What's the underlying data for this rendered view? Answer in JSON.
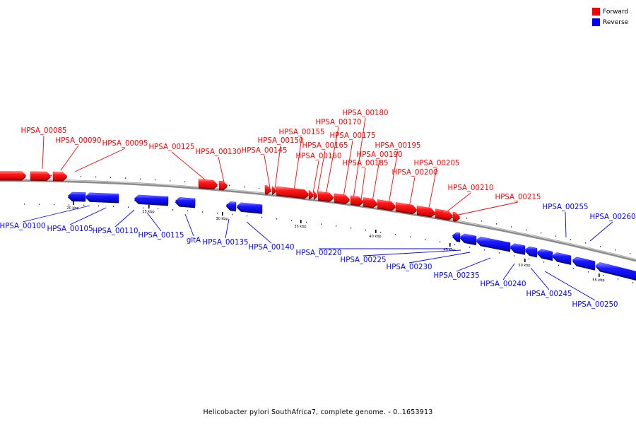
{
  "legend": [
    {
      "label": "Forward",
      "color": "#ff0000"
    },
    {
      "label": "Reverse",
      "color": "#0000ff"
    }
  ],
  "axis": {
    "ticks": [
      "20 kbp",
      "25 kbp",
      "30 kbp",
      "35 kbp",
      "40 kbp",
      "45 kbp",
      "50 kbp",
      "55 kbp"
    ]
  },
  "genes": [
    {
      "label": "HPSA_00085",
      "strand": "forward"
    },
    {
      "label": "HPSA_00090",
      "strand": "forward"
    },
    {
      "label": "HPSA_00095",
      "strand": "forward"
    },
    {
      "label": "HPSA_00100",
      "strand": "reverse"
    },
    {
      "label": "HPSA_00105",
      "strand": "reverse"
    },
    {
      "label": "HPSA_00110",
      "strand": "reverse"
    },
    {
      "label": "HPSA_00115",
      "strand": "reverse"
    },
    {
      "label": "gltA",
      "strand": "reverse"
    },
    {
      "label": "HPSA_00125",
      "strand": "forward"
    },
    {
      "label": "HPSA_00130",
      "strand": "forward"
    },
    {
      "label": "HPSA_00135",
      "strand": "reverse"
    },
    {
      "label": "HPSA_00140",
      "strand": "reverse"
    },
    {
      "label": "HPSA_00145",
      "strand": "forward"
    },
    {
      "label": "HPSA_00150",
      "strand": "forward"
    },
    {
      "label": "HPSA_00155",
      "strand": "forward"
    },
    {
      "label": "HPSA_00160",
      "strand": "forward"
    },
    {
      "label": "HPSA_00165",
      "strand": "forward"
    },
    {
      "label": "HPSA_00170",
      "strand": "forward"
    },
    {
      "label": "HPSA_00175",
      "strand": "forward"
    },
    {
      "label": "HPSA_00180",
      "strand": "forward"
    },
    {
      "label": "HPSA_00185",
      "strand": "forward"
    },
    {
      "label": "HPSA_00190",
      "strand": "forward"
    },
    {
      "label": "HPSA_00195",
      "strand": "forward"
    },
    {
      "label": "HPSA_00200",
      "strand": "forward"
    },
    {
      "label": "HPSA_00205",
      "strand": "forward"
    },
    {
      "label": "HPSA_00210",
      "strand": "forward"
    },
    {
      "label": "HPSA_00215",
      "strand": "forward"
    },
    {
      "label": "HPSA_00220",
      "strand": "reverse"
    },
    {
      "label": "HPSA_00225",
      "strand": "reverse"
    },
    {
      "label": "HPSA_00230",
      "strand": "reverse"
    },
    {
      "label": "HPSA_00235",
      "strand": "reverse"
    },
    {
      "label": "HPSA_00240",
      "strand": "reverse"
    },
    {
      "label": "HPSA_00245",
      "strand": "reverse"
    },
    {
      "label": "HPSA_00250",
      "strand": "reverse"
    },
    {
      "label": "HPSA_00255",
      "strand": "reverse"
    },
    {
      "label": "HPSA_00260",
      "strand": "reverse"
    }
  ],
  "footer": "Helicobacter pylori SouthAfrica7, complete genome. - 0..1653913"
}
